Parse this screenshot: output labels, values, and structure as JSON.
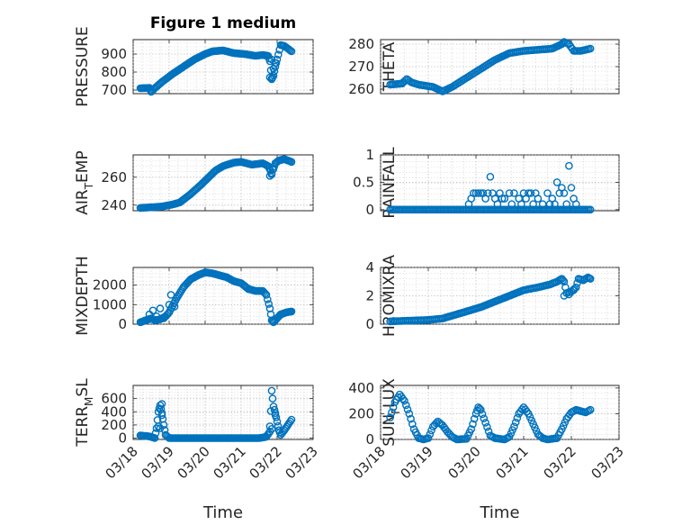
{
  "chart_data": [
    {
      "type": "scatter",
      "title": "Figure 1 medium",
      "ylabel": "PRESSURE",
      "xlabel": "",
      "xlim": [
        0,
        5
      ],
      "ylim": [
        680,
        980
      ],
      "yticks": [
        700,
        800,
        900
      ],
      "anchors": [
        [
          0.2,
          710
        ],
        [
          0.45,
          712
        ],
        [
          0.5,
          690
        ],
        [
          0.6,
          710
        ],
        [
          0.8,
          745
        ],
        [
          1.1,
          790
        ],
        [
          1.4,
          830
        ],
        [
          1.7,
          870
        ],
        [
          2.0,
          900
        ],
        [
          2.2,
          915
        ],
        [
          2.5,
          920
        ],
        [
          2.8,
          905
        ],
        [
          3.1,
          900
        ],
        [
          3.4,
          890
        ],
        [
          3.6,
          895
        ],
        [
          3.75,
          890
        ],
        [
          3.8,
          860
        ],
        [
          3.85,
          760
        ],
        [
          3.9,
          780
        ],
        [
          3.95,
          830
        ],
        [
          4.0,
          870
        ],
        [
          4.1,
          950
        ],
        [
          4.2,
          945
        ],
        [
          4.3,
          930
        ],
        [
          4.4,
          915
        ]
      ],
      "markers": [
        [
          3.8,
          770
        ],
        [
          3.85,
          765
        ],
        [
          3.9,
          820
        ],
        [
          3.95,
          850
        ],
        [
          3.85,
          870
        ]
      ]
    },
    {
      "type": "scatter",
      "title": "",
      "ylabel": "THETA",
      "xlabel": "",
      "xlim": [
        0,
        5
      ],
      "ylim": [
        258,
        282
      ],
      "yticks": [
        260,
        270,
        280
      ],
      "anchors": [
        [
          0.2,
          262
        ],
        [
          0.45,
          262.5
        ],
        [
          0.55,
          264.5
        ],
        [
          0.65,
          263
        ],
        [
          0.8,
          262
        ],
        [
          1.1,
          261
        ],
        [
          1.3,
          259
        ],
        [
          1.5,
          261
        ],
        [
          1.8,
          265
        ],
        [
          2.1,
          269
        ],
        [
          2.4,
          273
        ],
        [
          2.7,
          276
        ],
        [
          3.0,
          277
        ],
        [
          3.3,
          277.5
        ],
        [
          3.6,
          278
        ],
        [
          3.7,
          279
        ],
        [
          3.8,
          280
        ],
        [
          3.85,
          281
        ],
        [
          3.95,
          280
        ],
        [
          4.05,
          277
        ],
        [
          4.2,
          277
        ],
        [
          4.4,
          278
        ]
      ],
      "markers": []
    },
    {
      "type": "scatter",
      "title": "",
      "ylabel": "AIR_TEMP",
      "xlabel": "",
      "xlim": [
        0,
        5
      ],
      "ylim": [
        236,
        276
      ],
      "yticks": [
        240,
        260
      ],
      "anchors": [
        [
          0.2,
          238
        ],
        [
          0.5,
          238.5
        ],
        [
          0.8,
          239
        ],
        [
          1.1,
          240.5
        ],
        [
          1.3,
          242
        ],
        [
          1.6,
          248
        ],
        [
          1.9,
          255
        ],
        [
          2.1,
          260
        ],
        [
          2.3,
          265
        ],
        [
          2.5,
          268
        ],
        [
          2.8,
          270.5
        ],
        [
          3.0,
          271
        ],
        [
          3.3,
          269
        ],
        [
          3.6,
          270
        ],
        [
          3.75,
          268
        ],
        [
          3.85,
          263
        ],
        [
          3.95,
          270
        ],
        [
          4.05,
          272
        ],
        [
          4.2,
          273
        ],
        [
          4.4,
          271
        ]
      ],
      "markers": [
        [
          3.8,
          261
        ],
        [
          3.85,
          262
        ],
        [
          3.9,
          266
        ]
      ]
    },
    {
      "type": "scatter",
      "title": "",
      "ylabel": "RAINFALL",
      "xlabel": "",
      "xlim": [
        0,
        5
      ],
      "ylim": [
        -0.02,
        1
      ],
      "yticks": [
        0,
        0.5,
        1
      ],
      "yticklabels": [
        "0",
        "0.5",
        "1"
      ],
      "anchors": [
        [
          0.2,
          0
        ],
        [
          4.4,
          0
        ]
      ],
      "markers": [
        [
          1.85,
          0.1
        ],
        [
          1.9,
          0.2
        ],
        [
          1.95,
          0.3
        ],
        [
          2.0,
          0.3
        ],
        [
          2.05,
          0.3
        ],
        [
          2.1,
          0.3
        ],
        [
          2.15,
          0.3
        ],
        [
          2.2,
          0.2
        ],
        [
          2.25,
          0.3
        ],
        [
          2.3,
          0.6
        ],
        [
          2.35,
          0.3
        ],
        [
          2.4,
          0.2
        ],
        [
          2.45,
          0.1
        ],
        [
          2.5,
          0.3
        ],
        [
          2.55,
          0.2
        ],
        [
          2.6,
          0.2
        ],
        [
          2.7,
          0.3
        ],
        [
          2.75,
          0.1
        ],
        [
          2.8,
          0.3
        ],
        [
          2.9,
          0.2
        ],
        [
          2.95,
          0.1
        ],
        [
          3.0,
          0.3
        ],
        [
          3.05,
          0.2
        ],
        [
          3.1,
          0.3
        ],
        [
          3.15,
          0.3
        ],
        [
          3.2,
          0.1
        ],
        [
          3.25,
          0.3
        ],
        [
          3.3,
          0.2
        ],
        [
          3.4,
          0.1
        ],
        [
          3.5,
          0.3
        ],
        [
          3.55,
          0.1
        ],
        [
          3.6,
          0.2
        ],
        [
          3.65,
          0.1
        ],
        [
          3.7,
          0.5
        ],
        [
          3.75,
          0.3
        ],
        [
          3.8,
          0.4
        ],
        [
          3.85,
          0.3
        ],
        [
          3.9,
          0.1
        ],
        [
          3.95,
          0.8
        ],
        [
          4.0,
          0.4
        ],
        [
          4.05,
          0.2
        ],
        [
          4.1,
          0.1
        ]
      ]
    },
    {
      "type": "scatter",
      "title": "",
      "ylabel": "MIXDEPTH",
      "xlabel": "",
      "xlim": [
        0,
        5
      ],
      "ylim": [
        0,
        2900
      ],
      "yticks": [
        0,
        1000,
        2000
      ],
      "anchors": [
        [
          0.2,
          100
        ],
        [
          0.35,
          200
        ],
        [
          0.5,
          300
        ],
        [
          0.6,
          200
        ],
        [
          0.75,
          250
        ],
        [
          0.9,
          400
        ],
        [
          1.0,
          600
        ],
        [
          1.2,
          1300
        ],
        [
          1.4,
          1900
        ],
        [
          1.6,
          2300
        ],
        [
          1.8,
          2500
        ],
        [
          2.0,
          2650
        ],
        [
          2.2,
          2600
        ],
        [
          2.4,
          2500
        ],
        [
          2.6,
          2400
        ],
        [
          2.8,
          2200
        ],
        [
          3.0,
          2100
        ],
        [
          3.2,
          1800
        ],
        [
          3.4,
          1700
        ],
        [
          3.6,
          1700
        ],
        [
          3.7,
          1500
        ],
        [
          3.8,
          800
        ],
        [
          3.85,
          200
        ],
        [
          3.9,
          100
        ],
        [
          4.0,
          300
        ],
        [
          4.1,
          500
        ],
        [
          4.25,
          600
        ],
        [
          4.4,
          650
        ]
      ],
      "markers": [
        [
          0.45,
          500
        ],
        [
          0.55,
          700
        ],
        [
          0.65,
          400
        ],
        [
          0.75,
          800
        ],
        [
          0.85,
          300
        ],
        [
          1.0,
          1000
        ],
        [
          1.05,
          1500
        ],
        [
          1.15,
          900
        ]
      ]
    },
    {
      "type": "scatter",
      "title": "",
      "ylabel": "H2OMIXRA",
      "xlabel": "",
      "xlim": [
        0,
        5
      ],
      "ylim": [
        0,
        4
      ],
      "yticks": [
        0,
        2,
        4
      ],
      "anchors": [
        [
          0.2,
          0.2
        ],
        [
          0.6,
          0.25
        ],
        [
          1.0,
          0.3
        ],
        [
          1.3,
          0.4
        ],
        [
          1.5,
          0.6
        ],
        [
          1.8,
          0.9
        ],
        [
          2.1,
          1.2
        ],
        [
          2.4,
          1.6
        ],
        [
          2.7,
          2.0
        ],
        [
          3.0,
          2.4
        ],
        [
          3.3,
          2.6
        ],
        [
          3.55,
          2.8
        ],
        [
          3.7,
          3.0
        ],
        [
          3.8,
          3.2
        ],
        [
          3.85,
          3.0
        ],
        [
          3.9,
          2.2
        ],
        [
          4.0,
          2.3
        ],
        [
          4.1,
          2.6
        ],
        [
          4.15,
          3.2
        ],
        [
          4.25,
          3.1
        ],
        [
          4.35,
          3.3
        ],
        [
          4.4,
          3.2
        ]
      ],
      "markers": [
        [
          3.85,
          2.0
        ],
        [
          3.95,
          2.1
        ],
        [
          4.05,
          2.4
        ]
      ]
    },
    {
      "type": "scatter",
      "title": "",
      "ylabel": "TERR_MSL",
      "xlabel": "Time",
      "xlim": [
        0,
        5
      ],
      "ylim": [
        -20,
        800
      ],
      "yticks": [
        0,
        200,
        400,
        600
      ],
      "xticks": [
        0,
        1,
        2,
        3,
        4,
        5
      ],
      "xticklabels": [
        "03/18",
        "03/19",
        "03/20",
        "03/21",
        "03/22",
        "03/23"
      ],
      "anchors": [
        [
          0.2,
          40
        ],
        [
          0.4,
          30
        ],
        [
          0.5,
          20
        ],
        [
          0.6,
          0
        ],
        [
          0.65,
          150
        ],
        [
          0.7,
          400
        ],
        [
          0.75,
          500
        ],
        [
          0.8,
          380
        ],
        [
          0.85,
          200
        ],
        [
          0.9,
          50
        ],
        [
          1.0,
          0
        ],
        [
          1.5,
          0
        ],
        [
          2.0,
          0
        ],
        [
          2.5,
          0
        ],
        [
          3.0,
          0
        ],
        [
          3.5,
          0
        ],
        [
          3.7,
          20
        ],
        [
          3.8,
          100
        ],
        [
          3.85,
          720
        ],
        [
          3.9,
          480
        ],
        [
          3.95,
          380
        ],
        [
          4.0,
          250
        ],
        [
          4.05,
          120
        ],
        [
          4.1,
          50
        ],
        [
          4.2,
          120
        ],
        [
          4.3,
          200
        ],
        [
          4.4,
          280
        ]
      ],
      "markers": [
        [
          0.7,
          180
        ],
        [
          0.75,
          150
        ],
        [
          0.8,
          520
        ],
        [
          0.8,
          350
        ],
        [
          3.8,
          180
        ],
        [
          3.85,
          140
        ],
        [
          3.95,
          350
        ]
      ]
    },
    {
      "type": "scatter",
      "title": "",
      "ylabel": "SUN_FLUX",
      "xlabel": "Time",
      "xlim": [
        0,
        5
      ],
      "ylim": [
        0,
        420
      ],
      "yticks": [
        0,
        200,
        400
      ],
      "xticks": [
        0,
        1,
        2,
        3,
        4,
        5
      ],
      "xticklabels": [
        "03/18",
        "03/19",
        "03/20",
        "03/21",
        "03/22",
        "03/23"
      ],
      "anchors": [
        [
          0.2,
          170
        ],
        [
          0.3,
          290
        ],
        [
          0.4,
          350
        ],
        [
          0.5,
          300
        ],
        [
          0.6,
          200
        ],
        [
          0.7,
          80
        ],
        [
          0.8,
          10
        ],
        [
          0.9,
          0
        ],
        [
          1.0,
          10
        ],
        [
          1.1,
          100
        ],
        [
          1.2,
          140
        ],
        [
          1.3,
          110
        ],
        [
          1.4,
          60
        ],
        [
          1.5,
          20
        ],
        [
          1.6,
          0
        ],
        [
          1.8,
          5
        ],
        [
          1.9,
          80
        ],
        [
          2.0,
          200
        ],
        [
          2.05,
          250
        ],
        [
          2.1,
          230
        ],
        [
          2.2,
          130
        ],
        [
          2.3,
          30
        ],
        [
          2.4,
          10
        ],
        [
          2.6,
          0
        ],
        [
          2.7,
          20
        ],
        [
          2.8,
          100
        ],
        [
          2.9,
          200
        ],
        [
          3.0,
          250
        ],
        [
          3.1,
          200
        ],
        [
          3.2,
          120
        ],
        [
          3.3,
          40
        ],
        [
          3.4,
          10
        ],
        [
          3.5,
          0
        ],
        [
          3.7,
          10
        ],
        [
          3.8,
          80
        ],
        [
          3.9,
          160
        ],
        [
          4.0,
          210
        ],
        [
          4.1,
          230
        ],
        [
          4.2,
          220
        ],
        [
          4.3,
          210
        ],
        [
          4.4,
          230
        ]
      ],
      "markers": []
    }
  ]
}
